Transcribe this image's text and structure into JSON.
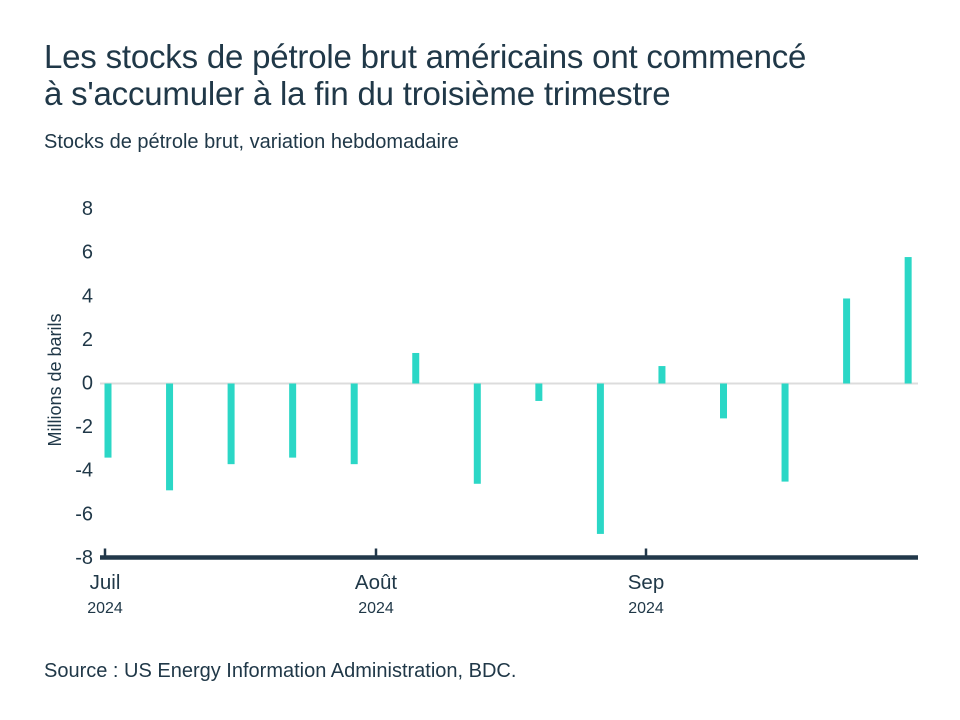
{
  "page": {
    "title_lines": [
      "Les stocks de pétrole brut américains ont commencé",
      "à s'accumuler à la fin du troisième trimestre"
    ],
    "subtitle": "Stocks de pétrole brut, variation hebdomadaire",
    "source": "Source : US Energy Information Administration, BDC."
  },
  "colors": {
    "text_navy": "#203848",
    "axis_navy": "#22384a",
    "bar_teal": "#2bd7c6",
    "zero_line": "#dcdcdc",
    "background": "#ffffff"
  },
  "chart_data": {
    "type": "bar",
    "title": "Les stocks de pétrole brut américains ont commencé à s'accumuler à la fin du troisième trimestre",
    "subtitle": "Stocks de pétrole brut, variation hebdomadaire",
    "ylabel": "Millions de barils",
    "xlabel": "",
    "ylim": [
      -8,
      8
    ],
    "yticks": [
      8,
      6,
      4,
      2,
      0,
      -2,
      -4,
      -6,
      -8
    ],
    "values": [
      -3.4,
      -4.9,
      -3.7,
      -3.4,
      -3.7,
      1.4,
      -4.6,
      -0.8,
      -6.9,
      0.8,
      -1.6,
      -4.5,
      3.9,
      5.8
    ],
    "series_name": "Variation hebdomadaire des stocks de pétrole brut",
    "xticks": [
      {
        "month": "Juil",
        "year": "2024"
      },
      {
        "month": "Août",
        "year": "2024"
      },
      {
        "month": "Sep",
        "year": "2024"
      }
    ],
    "legend": "none",
    "grid": "zero-baseline-only",
    "bar_color": "#2bd7c6"
  }
}
